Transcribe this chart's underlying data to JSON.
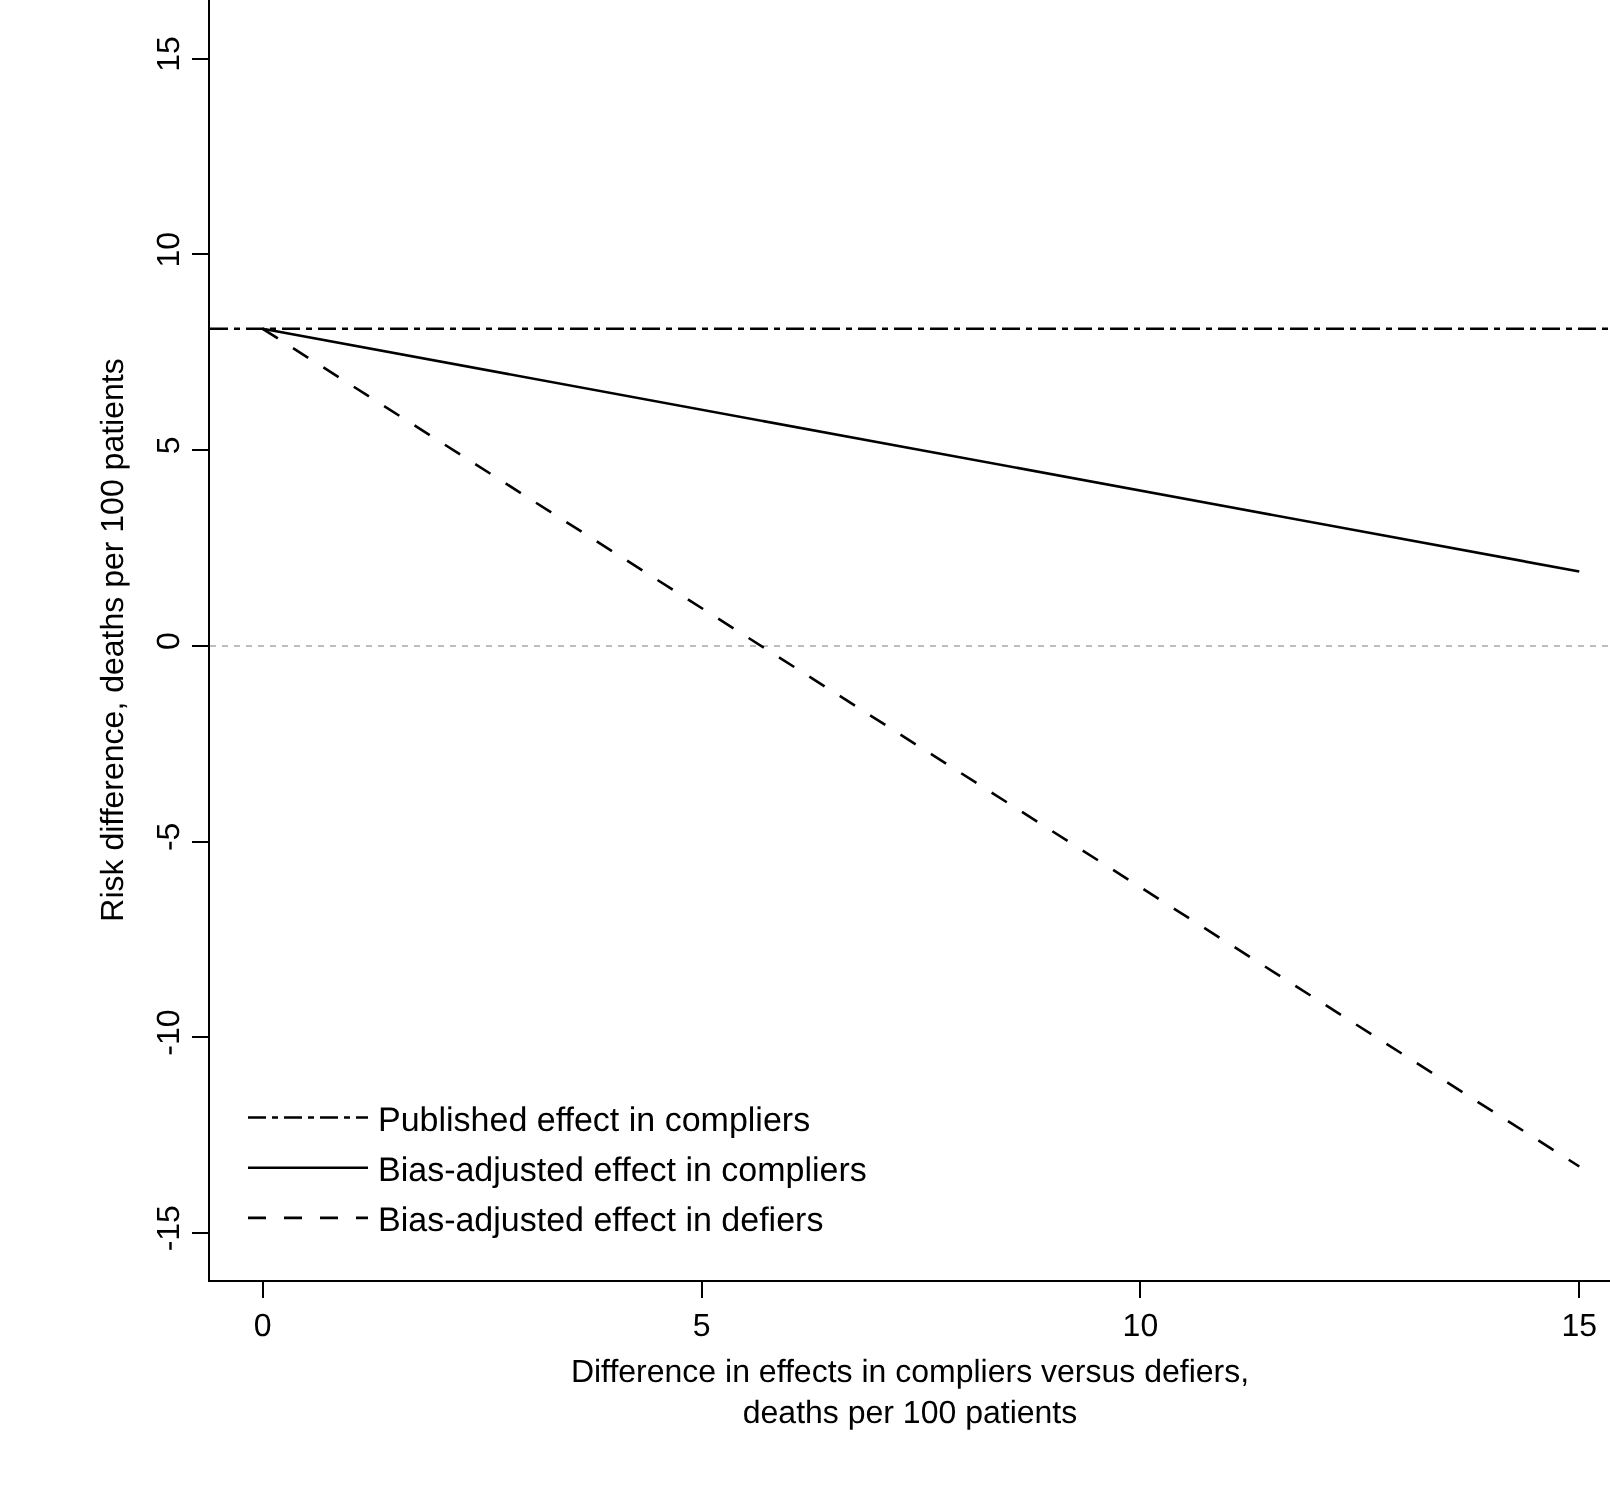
{
  "chart_data": {
    "type": "line",
    "xlabel": "Difference in effects in compliers versus defiers,\ndeaths per 100 patients",
    "ylabel": "Risk difference, deaths per 100 patients",
    "xlim": [
      -0.6,
      15.35
    ],
    "xticks": [
      0,
      5,
      10,
      15
    ],
    "ylim": [
      -16.2,
      16.5
    ],
    "yticks": [
      -15,
      -10,
      -5,
      0,
      5,
      10,
      15
    ],
    "grid": false,
    "legend": "bottom left",
    "marker": "none",
    "ref_lines": [
      {
        "axis": "y",
        "value": 0,
        "label": null,
        "color": "#bebebe",
        "line_style": "dotted"
      }
    ],
    "series": [
      {
        "name": "Published effect in compliers",
        "color": "#000000",
        "line_style": "dashdot",
        "x": [
          -0.6,
          15.35
        ],
        "values": [
          8.1,
          8.1
        ]
      },
      {
        "name": "Bias-adjusted effect in compliers",
        "color": "#000000",
        "line_style": "solid",
        "x": [
          0,
          15
        ],
        "values": [
          8.1,
          1.9
        ]
      },
      {
        "name": "Bias-adjusted effect in defiers",
        "color": "#000000",
        "line_style": "dashed",
        "x": [
          0,
          15
        ],
        "values": [
          8.1,
          -13.3
        ]
      }
    ]
  }
}
